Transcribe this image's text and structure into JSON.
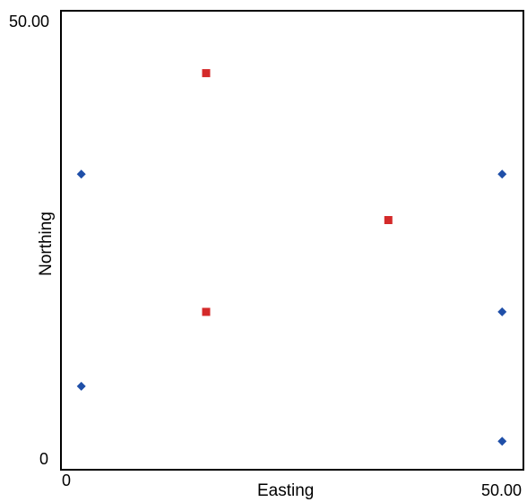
{
  "chart_data": {
    "type": "scatter",
    "title": "",
    "xlabel": "Easting",
    "ylabel": "Northing",
    "xlim": [
      0,
      50
    ],
    "ylim": [
      0,
      50
    ],
    "x_tick_labels": [
      "0",
      "50.00"
    ],
    "y_tick_labels": [
      "0",
      "50.00"
    ],
    "grid": false,
    "legend": "none",
    "series": [
      {
        "marker": "diamond",
        "color": "#1f4fa8",
        "points": [
          {
            "x": 2.2,
            "y": 32.2
          },
          {
            "x": 2.2,
            "y": 9.1
          },
          {
            "x": 47.7,
            "y": 32.2
          },
          {
            "x": 47.7,
            "y": 17.2
          },
          {
            "x": 47.7,
            "y": 3.1
          }
        ]
      },
      {
        "marker": "square",
        "color": "#d42a2a",
        "points": [
          {
            "x": 15.7,
            "y": 43.2
          },
          {
            "x": 15.7,
            "y": 17.2
          },
          {
            "x": 35.4,
            "y": 27.2
          }
        ]
      }
    ]
  }
}
